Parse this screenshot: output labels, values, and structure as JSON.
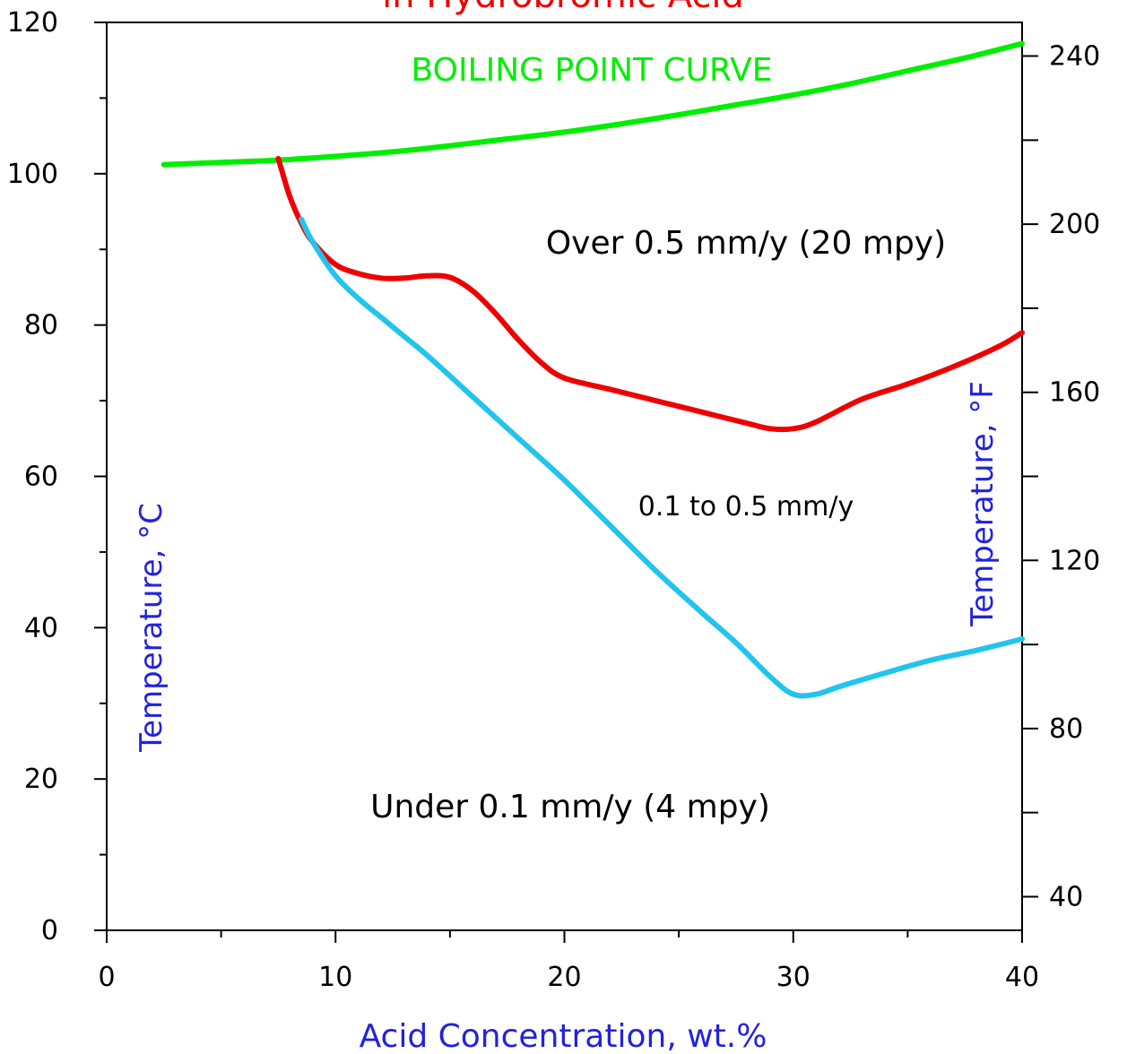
{
  "chart_data": {
    "type": "line",
    "title_fragment": "in Hydrobromic Acid",
    "xlabel": "Acid Concentration, wt.%",
    "ylabel_left": "Temperature, °C",
    "ylabel_right": "Temperature, °F",
    "xlim": [
      0,
      40
    ],
    "ylim": [
      0,
      120
    ],
    "ylim_right_F": [
      32,
      248
    ],
    "x_ticks": [
      0,
      10,
      20,
      30,
      40
    ],
    "x_minor_ticks": [
      5,
      15,
      25,
      35
    ],
    "y_ticks": [
      0,
      20,
      40,
      60,
      80,
      100,
      120
    ],
    "y_minor_ticks": [
      10,
      30,
      50,
      70,
      90,
      110
    ],
    "y_right_ticks": [
      40,
      80,
      120,
      160,
      200,
      240
    ],
    "y_right_minor_ticks": [
      60,
      100,
      140,
      180,
      220
    ],
    "grid": false,
    "series": [
      {
        "name": "BOILING POINT CURVE",
        "color": "#00ee00",
        "x": [
          2.5,
          5,
          7.5,
          10,
          12.5,
          15,
          17.5,
          20,
          22.5,
          25,
          27.5,
          30,
          32.5,
          35,
          37.5,
          40
        ],
        "y": [
          101.2,
          101.5,
          101.8,
          102.3,
          102.9,
          103.7,
          104.6,
          105.5,
          106.6,
          107.8,
          109.1,
          110.4,
          111.9,
          113.6,
          115.3,
          117.2
        ]
      },
      {
        "color": "#ee0000",
        "x": [
          7.5,
          8,
          8.5,
          9,
          10,
          11,
          12,
          13,
          14,
          15,
          16,
          17,
          18,
          19,
          20,
          22,
          24,
          26,
          28,
          29,
          30,
          31,
          33,
          35,
          37,
          39,
          40
        ],
        "y": [
          102,
          97,
          93.5,
          91,
          88,
          86.8,
          86.2,
          86.2,
          86.5,
          86.3,
          84.5,
          81.5,
          78,
          75,
          73,
          71.5,
          70,
          68.5,
          67,
          66.3,
          66.3,
          67.2,
          70.2,
          72.2,
          74.5,
          77.2,
          79
        ]
      },
      {
        "color": "#22c4ee",
        "x": [
          8.5,
          9,
          10,
          11,
          12,
          13,
          14,
          16,
          18,
          20,
          22,
          24,
          26,
          27.5,
          29,
          30,
          31,
          32,
          34,
          36,
          38,
          40
        ],
        "y": [
          94,
          91,
          86.5,
          83.5,
          81,
          78.5,
          76,
          70.5,
          65,
          59.5,
          53.5,
          47.5,
          42,
          38,
          33.5,
          31.2,
          31.2,
          32.2,
          34,
          35.7,
          37,
          38.5
        ]
      }
    ],
    "annotations": {
      "region_high": "Over 0.5 mm/y (20 mpy)",
      "region_mid": "0.1 to 0.5 mm/y",
      "region_low": "Under 0.1 mm/y (4 mpy)"
    }
  },
  "colors": {
    "title": "#ee0000",
    "axis_label": "#2222dd",
    "axis": "#000000"
  }
}
